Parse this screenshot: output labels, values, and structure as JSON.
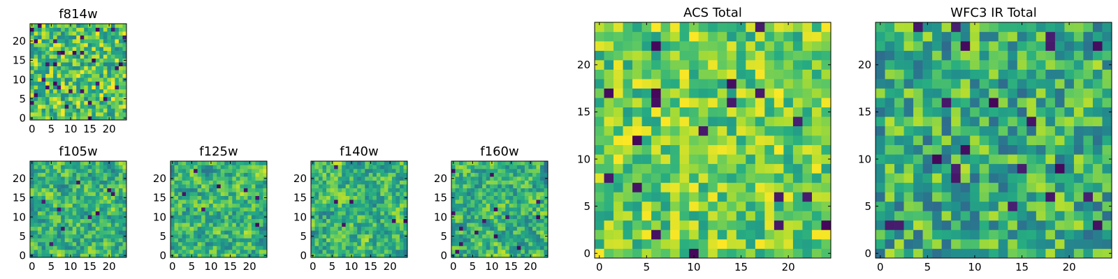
{
  "chart_data": [
    {
      "type": "heatmap",
      "title": "f814w",
      "grid_size": 25,
      "colormap": "viridis",
      "xticks": [
        0,
        5,
        10,
        15,
        20
      ],
      "yticks": [
        0,
        5,
        10,
        15,
        20
      ],
      "xlim": [
        -0.5,
        24.5
      ],
      "ylim": [
        -0.5,
        24.5
      ],
      "seed": 11,
      "style": "noisy",
      "outlier_rate": 0.05
    },
    {
      "type": "heatmap",
      "title": "f105w",
      "grid_size": 25,
      "colormap": "viridis",
      "xticks": [
        0,
        5,
        10,
        15,
        20
      ],
      "yticks": [
        0,
        5,
        10,
        15,
        20
      ],
      "xlim": [
        -0.5,
        24.5
      ],
      "ylim": [
        -0.5,
        24.5
      ],
      "seed": 23,
      "style": "smooth",
      "outlier_rate": 0.02
    },
    {
      "type": "heatmap",
      "title": "f125w",
      "grid_size": 25,
      "colormap": "viridis",
      "xticks": [
        0,
        5,
        10,
        15,
        20
      ],
      "yticks": [
        0,
        5,
        10,
        15,
        20
      ],
      "xlim": [
        -0.5,
        24.5
      ],
      "ylim": [
        -0.5,
        24.5
      ],
      "seed": 37,
      "style": "smooth",
      "outlier_rate": 0.01
    },
    {
      "type": "heatmap",
      "title": "f140w",
      "grid_size": 25,
      "colormap": "viridis",
      "xticks": [
        0,
        5,
        10,
        15,
        20
      ],
      "yticks": [
        0,
        5,
        10,
        15,
        20
      ],
      "xlim": [
        -0.5,
        24.5
      ],
      "ylim": [
        -0.5,
        24.5
      ],
      "seed": 41,
      "style": "smooth",
      "outlier_rate": 0.015
    },
    {
      "type": "heatmap",
      "title": "f160w",
      "grid_size": 25,
      "colormap": "viridis",
      "xticks": [
        0,
        5,
        10,
        15,
        20
      ],
      "yticks": [
        0,
        5,
        10,
        15,
        20
      ],
      "xlim": [
        -0.5,
        24.5
      ],
      "ylim": [
        -0.5,
        24.5
      ],
      "seed": 53,
      "style": "smooth",
      "outlier_rate": 0.015
    },
    {
      "type": "heatmap",
      "title": "ACS Total",
      "grid_size": 25,
      "colormap": "viridis",
      "xticks": [
        0,
        5,
        10,
        15,
        20
      ],
      "yticks": [
        0,
        5,
        10,
        15,
        20
      ],
      "xlim": [
        -0.5,
        24.5
      ],
      "ylim": [
        -0.5,
        24.5
      ],
      "seed": 67,
      "style": "bright",
      "outlier_rate": 0.02
    },
    {
      "type": "heatmap",
      "title": "WFC3 IR Total",
      "grid_size": 25,
      "colormap": "viridis",
      "xticks": [
        0,
        5,
        10,
        15,
        20
      ],
      "yticks": [
        0,
        5,
        10,
        15,
        20
      ],
      "xlim": [
        -0.5,
        24.5
      ],
      "ylim": [
        -0.5,
        24.5
      ],
      "seed": 79,
      "style": "mid",
      "outlier_rate": 0.03
    }
  ]
}
